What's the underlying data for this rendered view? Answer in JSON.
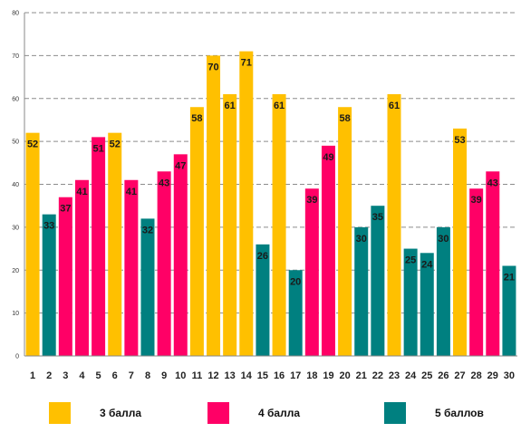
{
  "chart_data": {
    "type": "bar",
    "categories": [
      "1",
      "2",
      "3",
      "4",
      "5",
      "6",
      "7",
      "8",
      "9",
      "10",
      "11",
      "12",
      "13",
      "14",
      "15",
      "16",
      "17",
      "18",
      "19",
      "20",
      "21",
      "22",
      "23",
      "24",
      "25",
      "26",
      "27",
      "28",
      "29",
      "30"
    ],
    "values": [
      52,
      33,
      37,
      41,
      51,
      52,
      41,
      32,
      43,
      47,
      58,
      70,
      61,
      71,
      26,
      61,
      20,
      39,
      49,
      58,
      30,
      35,
      61,
      25,
      24,
      30,
      53,
      39,
      43,
      21
    ],
    "groups": [
      "3",
      "5",
      "4",
      "4",
      "4",
      "3",
      "4",
      "5",
      "4",
      "4",
      "3",
      "3",
      "3",
      "3",
      "5",
      "3",
      "5",
      "4",
      "4",
      "3",
      "5",
      "5",
      "3",
      "5",
      "5",
      "5",
      "3",
      "4",
      "4",
      "5"
    ],
    "ylim": [
      0,
      80
    ],
    "yticks": [
      0,
      10,
      20,
      30,
      40,
      50,
      60,
      70,
      80
    ],
    "grid": true,
    "legend_position": "bottom",
    "legend": [
      {
        "key": "3",
        "name": "3 балла",
        "color": "#ffc000"
      },
      {
        "key": "4",
        "name": "4 балла",
        "color": "#ff0066"
      },
      {
        "key": "5",
        "name": "5 баллов",
        "color": "#008080"
      }
    ]
  }
}
